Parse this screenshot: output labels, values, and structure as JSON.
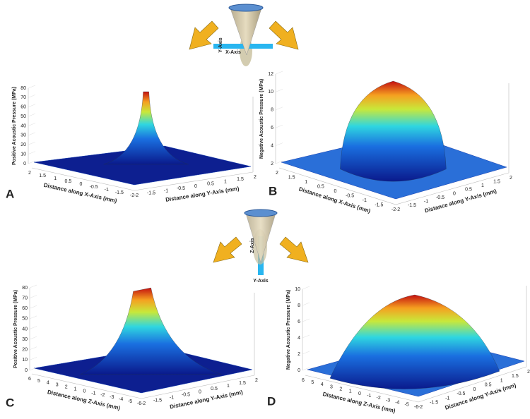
{
  "icons": [
    {
      "labels": [
        "Y-Axis",
        "X-Axis"
      ]
    },
    {
      "labels": [
        "Z-Axis",
        "Y-Axis"
      ]
    }
  ],
  "panels": [
    {
      "label": "A",
      "zlabel": "Positive Acoustic Pressure (MPa)",
      "xlabel": "Distance along X-Axis  (mm)",
      "ylabel": "Distance along Y-Axis  (mm)",
      "zticks": [
        "0",
        "10",
        "20",
        "30",
        "40",
        "50",
        "60",
        "70",
        "80"
      ],
      "xticks": [
        "2",
        "1.5",
        "1",
        "0.5",
        "0",
        "-0.5",
        "-1",
        "-1.5",
        "-2"
      ],
      "yticks": [
        "-2",
        "-1.5",
        "-1",
        "-0.5",
        "0",
        "0.5",
        "1",
        "1.5",
        "2"
      ]
    },
    {
      "label": "B",
      "zlabel": "Negative Acoustic Pressure (MPa)",
      "xlabel": "Distance along X-Axis  (mm)",
      "ylabel": "Distance along Y-Axis  (mm)",
      "zticks": [
        "2",
        "4",
        "6",
        "8",
        "10",
        "12"
      ],
      "xticks": [
        "2",
        "1.5",
        "1",
        "0.5",
        "0",
        "-0.5",
        "-1",
        "-1.5",
        "-2"
      ],
      "yticks": [
        "-2",
        "-1.5",
        "-1",
        "-0.5",
        "0",
        "0.5",
        "1",
        "1.5",
        "2"
      ]
    },
    {
      "label": "C",
      "zlabel": "Positive Acoustic Pressure (MPa)",
      "xlabel": "Distance along Z-Axis  (mm)",
      "ylabel": "Distance along Y-Axis  (mm)",
      "zticks": [
        "0",
        "10",
        "20",
        "30",
        "40",
        "50",
        "60",
        "70",
        "80"
      ],
      "xticks": [
        "6",
        "5",
        "4",
        "3",
        "2",
        "1",
        "0",
        "-1",
        "-2",
        "-3",
        "-4",
        "-5",
        "-6"
      ],
      "yticks": [
        "-2",
        "-1.5",
        "-1",
        "-0.5",
        "0",
        "0.5",
        "1",
        "1.5",
        "2"
      ]
    },
    {
      "label": "D",
      "zlabel": "Negative Acoustic Pressure (MPa)",
      "xlabel": "Distance along Z-Axis  (mm)",
      "ylabel": "Distance along Y-Axis  (mm)",
      "zticks": [
        "0",
        "2",
        "4",
        "6",
        "8",
        "10"
      ],
      "xticks": [
        "6",
        "5",
        "4",
        "3",
        "2",
        "1",
        "0",
        "-1",
        "-2",
        "-3",
        "-4",
        "-5",
        "-6"
      ],
      "yticks": [
        "-2",
        "-1.5",
        "-1",
        "-0.5",
        "0",
        "0.5",
        "1",
        "1.5",
        "2"
      ]
    }
  ]
}
